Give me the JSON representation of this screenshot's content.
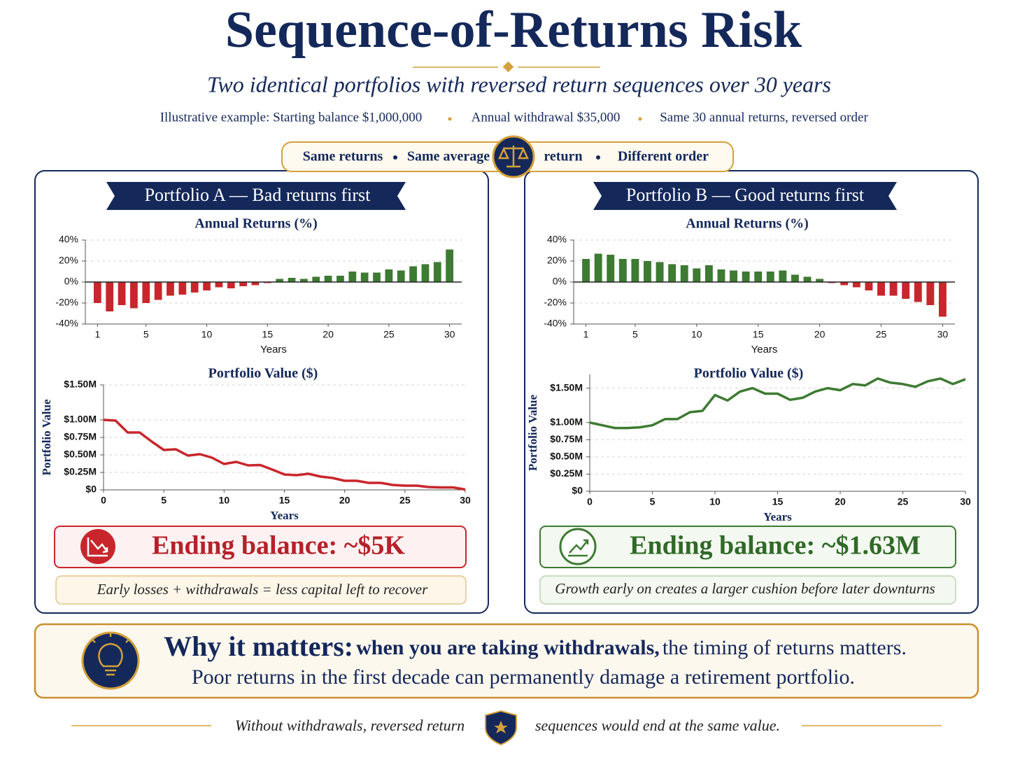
{
  "header": {
    "title": "Sequence-of-Returns Risk",
    "subtitle": "Two identical portfolios with reversed return sequences over 30 years",
    "note": [
      "Illustrative example: Starting balance $1,000,000",
      "Annual withdrawal $35,000",
      "Same 30 annual returns, reversed order"
    ]
  },
  "badge": [
    "Same returns",
    "Same average",
    "return",
    "Different order"
  ],
  "panels": [
    {
      "title": "Portfolio A — Bad returns first",
      "ending": "Ending balance: ~$5K",
      "caption": "Early losses + withdrawals = less capital left to recover"
    },
    {
      "title": "Portfolio B — Good returns first",
      "ending": "Ending balance: ~$1.63M",
      "caption": "Growth early on creates a larger cushion before later downturns"
    }
  ],
  "chart_data": [
    {
      "type": "bar",
      "title": "Annual Returns (%)",
      "x_label": "Years",
      "x": [
        1,
        2,
        3,
        4,
        5,
        6,
        7,
        8,
        9,
        10,
        11,
        12,
        13,
        14,
        15,
        16,
        17,
        18,
        19,
        20,
        21,
        22,
        23,
        24,
        25,
        26,
        27,
        28,
        29,
        30
      ],
      "values": [
        -20,
        -28,
        -22,
        -25,
        -20,
        -17,
        -13,
        -12,
        -10,
        -8,
        -5,
        -6,
        -4,
        -3,
        -1,
        3,
        4,
        3,
        5,
        6,
        6,
        10,
        9,
        9,
        12,
        11,
        15,
        17,
        19,
        31
      ],
      "color_positive": "#3d7a32",
      "color_negative": "#c8262c",
      "xlim": [
        0,
        31
      ],
      "xticks": [
        1,
        5,
        10,
        15,
        20,
        25,
        30
      ],
      "ylim": [
        -40,
        40
      ],
      "yticks": [
        {
          "value": -40,
          "label": "-40%"
        },
        {
          "value": -20,
          "label": "-20%"
        },
        {
          "value": 0,
          "label": "0%"
        },
        {
          "value": 20,
          "label": "20%"
        },
        {
          "value": 40,
          "label": "40%"
        }
      ],
      "grid": true
    },
    {
      "type": "line",
      "title": "Portfolio Value ($)",
      "x_label": "Years",
      "y_label": "Portfolio Value",
      "x": [
        0,
        1,
        2,
        3,
        4,
        5,
        6,
        7,
        8,
        9,
        10,
        11,
        12,
        13,
        14,
        15,
        16,
        17,
        18,
        19,
        20,
        21,
        22,
        23,
        24,
        25,
        26,
        27,
        28,
        29,
        30
      ],
      "values": [
        1000000,
        990000,
        820000,
        820000,
        690000,
        570000,
        580000,
        490000,
        510000,
        460000,
        370000,
        400000,
        350000,
        355000,
        290000,
        220000,
        210000,
        230000,
        190000,
        170000,
        130000,
        130000,
        100000,
        100000,
        70000,
        60000,
        60000,
        40000,
        35000,
        35000,
        5000
      ],
      "color": "#c8262c",
      "xlim": [
        0,
        30
      ],
      "xticks": [
        0,
        5,
        10,
        15,
        20,
        25,
        30
      ],
      "ylim": [
        0,
        1500000
      ],
      "yticks": [
        {
          "value": 0,
          "label": "$0"
        },
        {
          "value": 250000,
          "label": "$0.25M"
        },
        {
          "value": 500000,
          "label": "$0.50M"
        },
        {
          "value": 750000,
          "label": "$0.75M"
        },
        {
          "value": 1000000,
          "label": "$1.00M"
        },
        {
          "value": 1500000,
          "label": "$1.50M"
        }
      ],
      "grid": true
    },
    {
      "type": "bar",
      "title": "Annual Returns (%)",
      "x_label": "Years",
      "x": [
        1,
        2,
        3,
        4,
        5,
        6,
        7,
        8,
        9,
        10,
        11,
        12,
        13,
        14,
        15,
        16,
        17,
        18,
        19,
        20,
        21,
        22,
        23,
        24,
        25,
        26,
        27,
        28,
        29,
        30
      ],
      "values": [
        22,
        27,
        26,
        22,
        22,
        20,
        19,
        17,
        16,
        13,
        16,
        12,
        11,
        10,
        10,
        10,
        11,
        7,
        5,
        3,
        -1,
        -3,
        -5,
        -8,
        -13,
        -13,
        -16,
        -19,
        -22,
        -33
      ],
      "color_positive": "#3d7a32",
      "color_negative": "#c8262c",
      "xlim": [
        0,
        31
      ],
      "xticks": [
        1,
        5,
        10,
        15,
        20,
        25,
        30
      ],
      "ylim": [
        -40,
        40
      ],
      "yticks": [
        {
          "value": -40,
          "label": "-40%"
        },
        {
          "value": -20,
          "label": "-20%"
        },
        {
          "value": 0,
          "label": "0%"
        },
        {
          "value": 20,
          "label": "20%"
        },
        {
          "value": 40,
          "label": "40%"
        }
      ],
      "grid": true
    },
    {
      "type": "line",
      "title": "Portfolio Value ($)",
      "x_label": "Years",
      "y_label": "Portfolio Value",
      "x": [
        0,
        1,
        2,
        3,
        4,
        5,
        6,
        7,
        8,
        9,
        10,
        11,
        12,
        13,
        14,
        15,
        16,
        17,
        18,
        19,
        20,
        21,
        22,
        23,
        24,
        25,
        26,
        27,
        28,
        29,
        30
      ],
      "values": [
        1000000,
        960000,
        920000,
        920000,
        930000,
        960000,
        1050000,
        1050000,
        1150000,
        1170000,
        1400000,
        1320000,
        1450000,
        1500000,
        1420000,
        1420000,
        1330000,
        1360000,
        1450000,
        1500000,
        1470000,
        1560000,
        1540000,
        1640000,
        1580000,
        1560000,
        1520000,
        1600000,
        1640000,
        1560000,
        1630000
      ],
      "color": "#3d7a32",
      "xlim": [
        0,
        30
      ],
      "xticks": [
        0,
        5,
        10,
        15,
        20,
        25,
        30
      ],
      "ylim": [
        0,
        1700000
      ],
      "yticks": [
        {
          "value": 0,
          "label": "$0"
        },
        {
          "value": 250000,
          "label": "$0.25M"
        },
        {
          "value": 500000,
          "label": "$0.50M"
        },
        {
          "value": 750000,
          "label": "$0.75M"
        },
        {
          "value": 1000000,
          "label": "$1.00M"
        },
        {
          "value": 1500000,
          "label": "$1.50M"
        }
      ],
      "grid": true
    }
  ],
  "why": {
    "lead": "Why it matters:",
    "bold": "when you are taking withdrawals,",
    "rest": "the timing of returns matters.",
    "line2": "Poor returns in the first decade can permanently damage a retirement portfolio."
  },
  "footer": [
    "Without withdrawals, reversed return",
    "sequences would end at the same value."
  ]
}
